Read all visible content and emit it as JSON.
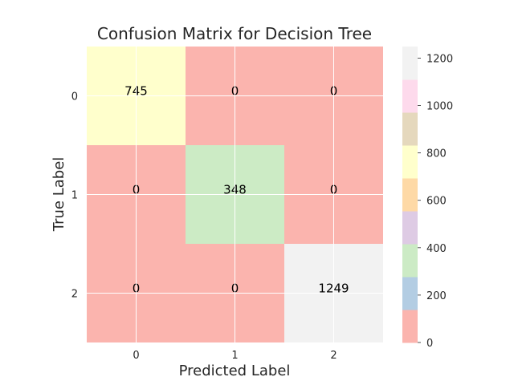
{
  "chart_data": {
    "type": "heatmap",
    "title": "Confusion Matrix for Decision Tree",
    "xlabel": "Predicted Label",
    "ylabel": "True Label",
    "x_categories": [
      "0",
      "1",
      "2"
    ],
    "y_categories": [
      "0",
      "1",
      "2"
    ],
    "values": [
      [
        745,
        0,
        0
      ],
      [
        0,
        348,
        0
      ],
      [
        0,
        0,
        1249
      ]
    ],
    "colorbar": {
      "vmin": 0,
      "vmax": 1249,
      "ticks": [
        0,
        200,
        400,
        600,
        800,
        1000,
        1200
      ],
      "palette": [
        "#fbb4ae",
        "#b3cde3",
        "#ccebc5",
        "#decbe4",
        "#fed9a6",
        "#ffffcc",
        "#e5d8bd",
        "#fddaec",
        "#f2f2f2"
      ]
    },
    "grid": true
  }
}
